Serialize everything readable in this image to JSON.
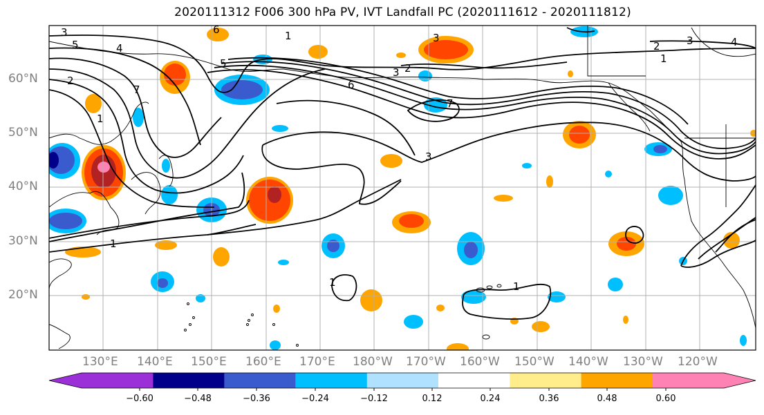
{
  "title": "2020111312 F006 300 hPa PV, IVT Landfall PC (2020111612 - 2020111812)",
  "latitudes": [
    "60°N",
    "50°N",
    "40°N",
    "30°N",
    "20°N"
  ],
  "longitudes": [
    "130°E",
    "140°E",
    "150°E",
    "160°E",
    "170°E",
    "180°W",
    "170°W",
    "160°W",
    "150°W",
    "140°W",
    "130°W",
    "120°W"
  ],
  "colorbar": {
    "colors": [
      "#9b30d9",
      "#00008b",
      "#3a5bcd",
      "#00bfff",
      "#b0e2ff",
      "#ffffff",
      "#ffec8b",
      "#ffa500",
      "#ff4500",
      "#b22222",
      "#ff82b4"
    ],
    "ticks": [
      "−0.60",
      "−0.48",
      "−0.36",
      "−0.24",
      "−0.12",
      "0.12",
      "0.24",
      "0.36",
      "0.48",
      "0.60"
    ]
  },
  "contour_labels": [
    "3",
    "5",
    "4",
    "2",
    "7",
    "1",
    "6",
    "5",
    "1",
    "3",
    "3",
    "2",
    "6",
    "7",
    "3",
    "2",
    "3",
    "4",
    "1",
    "1",
    "1",
    "1"
  ]
}
